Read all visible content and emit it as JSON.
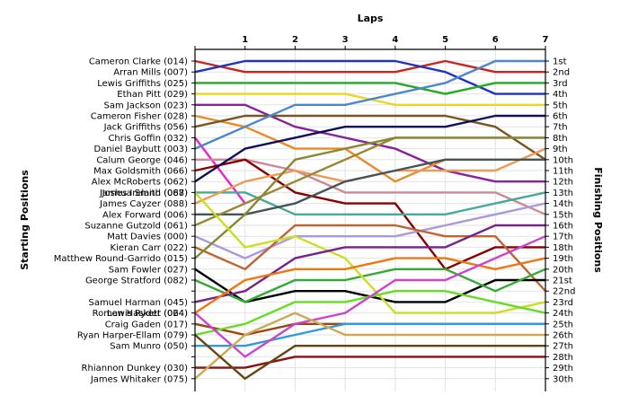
{
  "chart_data": {
    "type": "line",
    "title": "Laps",
    "ylabel_left": "Starting Positions",
    "ylabel_right": "Finishing Positions",
    "laps": [
      0,
      1,
      2,
      3,
      4,
      5,
      6,
      7
    ],
    "lap_tick_labels": [
      "1",
      "2",
      "3",
      "4",
      "5",
      "6",
      "7"
    ],
    "grid": true,
    "y_range": [
      1,
      30
    ],
    "finishing_labels": [
      "1st",
      "2nd",
      "3rd",
      "4th",
      "5th",
      "6th",
      "7th",
      "8th",
      "9th",
      "10th",
      "11th",
      "12th",
      "13th",
      "14th",
      "15th",
      "16th",
      "17th",
      "18th",
      "19th",
      "20th",
      "21st",
      "22nd",
      "23rd",
      "24th",
      "25th",
      "26th",
      "27th",
      "28th",
      "29th",
      "30th"
    ],
    "finishing_label_slots": [
      1,
      2,
      3,
      4,
      5,
      6,
      7,
      8,
      9,
      10,
      11,
      12,
      13,
      14,
      15,
      16,
      17,
      18,
      19,
      20,
      21,
      22,
      23,
      24,
      25,
      26,
      27,
      28,
      29,
      30
    ],
    "series": [
      {
        "name": "Cameron Clarke (014)",
        "color": "#cc2222",
        "positions": [
          1,
          2,
          2,
          2,
          2,
          1,
          2,
          2
        ]
      },
      {
        "name": "Arran Mills (007)",
        "color": "#2233bb",
        "positions": [
          2,
          1,
          1,
          1,
          1,
          2,
          4,
          4
        ]
      },
      {
        "name": "Lewis Griffiths (025)",
        "color": "#22aa22",
        "positions": [
          3,
          3,
          3,
          3,
          3,
          4,
          3,
          3
        ]
      },
      {
        "name": "Ethan Pitt (029)",
        "color": "#e8d820",
        "positions": [
          4,
          4,
          4,
          4,
          5,
          5,
          5,
          5
        ]
      },
      {
        "name": "Sam Jackson (023)",
        "color": "#882299",
        "positions": [
          5,
          5,
          7,
          8,
          9,
          11,
          12,
          12
        ]
      },
      {
        "name": "Cameron Fisher (028)",
        "color": "#ee8822",
        "positions": [
          6,
          7,
          9,
          9,
          12,
          10,
          10,
          10
        ]
      },
      {
        "name": "Jack Griffiths (056)",
        "color": "#7a5522",
        "positions": [
          7,
          6,
          6,
          6,
          6,
          6,
          7,
          10
        ]
      },
      {
        "name": "Chris Goffin (032)",
        "color": "#ee22cc",
        "positions": [
          8,
          14,
          null,
          null,
          null,
          null,
          null,
          null
        ]
      },
      {
        "name": "Daniel Baybutt (003)",
        "color": "#4a88cc",
        "positions": [
          9,
          7,
          5,
          5,
          4,
          3,
          1,
          1
        ]
      },
      {
        "name": "Calum George (046)",
        "color": "#cc8899",
        "positions": [
          10,
          10,
          11,
          13,
          13,
          13,
          13,
          15
        ]
      },
      {
        "name": "Max Goldsmith (066)",
        "color": "#880000",
        "positions": [
          11,
          10,
          13,
          14,
          14,
          20,
          18,
          18
        ]
      },
      {
        "name": "Alex McRoberts (062)",
        "color": "#11115a",
        "positions": [
          12,
          9,
          8,
          7,
          7,
          7,
          6,
          6
        ]
      },
      {
        "name": "James Ireland (068)",
        "color": "#44aa99",
        "positions": [
          13,
          13,
          15,
          15,
          15,
          15,
          14,
          13
        ]
      },
      {
        "name": "James Cayzer (088)",
        "color": "#ee9955",
        "positions": [
          14,
          12,
          11,
          12,
          11,
          11,
          11,
          9
        ]
      },
      {
        "name": "Alex Forward (006)",
        "color": "#445555",
        "positions": [
          15,
          15,
          14,
          12,
          11,
          10,
          10,
          10
        ]
      },
      {
        "name": "Suzanne Gutzold (061)",
        "color": "#998833",
        "positions": [
          16,
          14,
          12,
          10,
          8,
          8,
          8,
          8
        ]
      },
      {
        "name": "Matt Davies (000)",
        "color": "#aa99dd",
        "positions": [
          17,
          19,
          17,
          17,
          17,
          16,
          15,
          14
        ]
      },
      {
        "name": "Kieran Carr (022)",
        "color": "#bb6633",
        "positions": [
          18,
          20,
          16,
          16,
          16,
          17,
          17,
          22
        ]
      },
      {
        "name": "Matthew Round-Garrido (015)",
        "color": "#888833",
        "positions": [
          19,
          15,
          10,
          9,
          8,
          8,
          8,
          8
        ]
      },
      {
        "name": "Sam Fowler (027)",
        "color": "#000000",
        "positions": [
          20,
          23,
          22,
          22,
          23,
          23,
          21,
          21
        ]
      },
      {
        "name": "George Stratford (082)",
        "color": "#33aa33",
        "positions": [
          21,
          23,
          21,
          21,
          20,
          20,
          22,
          20
        ]
      },
      {
        "name": "Joshua Smith (087)",
        "color": "#ccdd22",
        "positions": [
          13,
          18,
          17,
          19,
          24,
          24,
          24,
          23
        ]
      },
      {
        "name": "Samuel Harman (045)",
        "color": "#772288",
        "positions": [
          23,
          22,
          19,
          18,
          18,
          18,
          16,
          16
        ]
      },
      {
        "name": "Lewis Ryder (064)",
        "color": "#ee7711",
        "positions": [
          24,
          21,
          20,
          20,
          19,
          19,
          20,
          19
        ]
      },
      {
        "name": "Craig Gaden (017)",
        "color": "#994411",
        "positions": [
          25,
          26,
          25,
          25,
          25,
          25,
          25,
          25
        ]
      },
      {
        "name": "Ryan Harper-Ellam (079)",
        "color": "#66dd22",
        "positions": [
          26,
          25,
          23,
          23,
          22,
          22,
          23,
          24
        ]
      },
      {
        "name": "Sam Munro (050)",
        "color": "#3399dd",
        "positions": [
          27,
          27,
          26,
          25,
          25,
          25,
          25,
          25
        ]
      },
      {
        "name": "Roman Haskett (024)",
        "color": "#cc44cc",
        "positions": [
          24,
          28,
          25,
          24,
          21,
          21,
          19,
          17
        ]
      },
      {
        "name": "Rhiannon Dunkey (030)",
        "color": "#881111",
        "positions": [
          29,
          29,
          28,
          28,
          28,
          28,
          28,
          28
        ]
      },
      {
        "name": "James Whitaker (075)",
        "color": "#ccaa55",
        "positions": [
          30,
          26,
          24,
          26,
          26,
          26,
          26,
          26
        ]
      },
      {
        "name": "",
        "color": "#664411",
        "positions": [
          26,
          30,
          27,
          27,
          27,
          27,
          27,
          27
        ]
      }
    ]
  }
}
